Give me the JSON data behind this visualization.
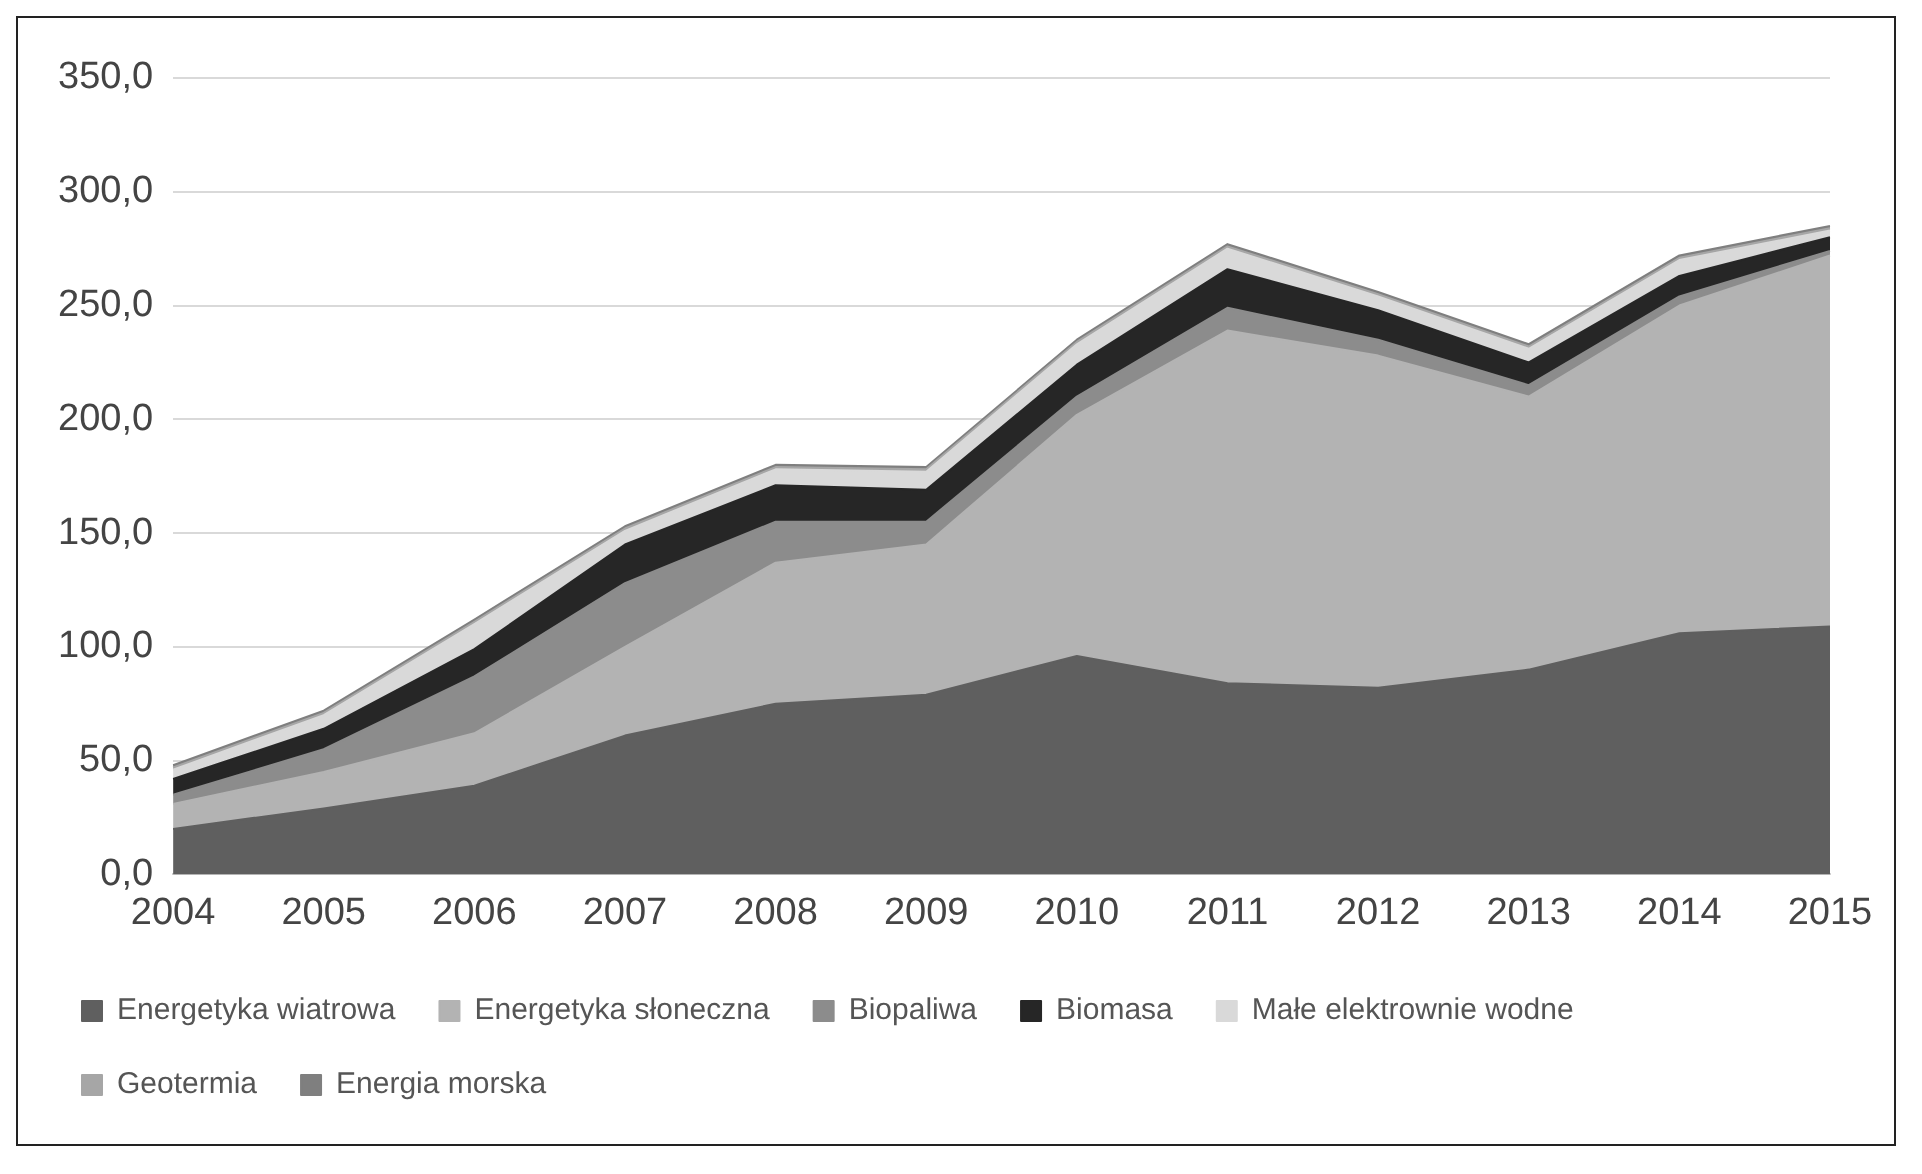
{
  "chart_data": {
    "type": "area",
    "stacked": true,
    "categories": [
      "2004",
      "2005",
      "2006",
      "2007",
      "2008",
      "2009",
      "2010",
      "2011",
      "2012",
      "2013",
      "2014",
      "2015"
    ],
    "series": [
      {
        "name": "Energetyka wiatrowa",
        "color": "#5f5f5f",
        "values": [
          20,
          29,
          39,
          61,
          75,
          79,
          96,
          84,
          82,
          90,
          106,
          109
        ]
      },
      {
        "name": "Energetyka słoneczna",
        "color": "#b3b3b3",
        "values": [
          11,
          16,
          23,
          39,
          62,
          66,
          106,
          155,
          146,
          120,
          144,
          163
        ]
      },
      {
        "name": "Biopaliwa",
        "color": "#8c8c8c",
        "values": [
          4,
          10,
          25,
          28,
          18,
          10,
          8,
          10,
          7,
          5,
          4,
          2
        ]
      },
      {
        "name": "Biomasa",
        "color": "#262626",
        "values": [
          7,
          9,
          12,
          17,
          16,
          14,
          14,
          17,
          13,
          10,
          9,
          6
        ]
      },
      {
        "name": "Małe elektrownie wodne",
        "color": "#d9d9d9",
        "values": [
          4,
          6,
          11,
          6,
          7,
          8,
          9,
          9,
          6,
          6,
          7,
          3
        ]
      },
      {
        "name": "Geotermia",
        "color": "#a6a6a6",
        "values": [
          1,
          1,
          1,
          1,
          1,
          1,
          1,
          1,
          1,
          1,
          1,
          1
        ]
      },
      {
        "name": "Energia morska",
        "color": "#7f7f7f",
        "values": [
          1,
          1,
          1,
          1,
          1,
          1,
          1,
          1,
          1,
          1,
          1,
          1
        ]
      }
    ],
    "ylim": [
      0,
      350
    ],
    "yticks": [
      {
        "value": 0,
        "label": "0,0"
      },
      {
        "value": 50,
        "label": "50,0"
      },
      {
        "value": 100,
        "label": "100,0"
      },
      {
        "value": 150,
        "label": "150,0"
      },
      {
        "value": 200,
        "label": "200,0"
      },
      {
        "value": 250,
        "label": "250,0"
      },
      {
        "value": 300,
        "label": "300,0"
      },
      {
        "value": 350,
        "label": "350,0"
      }
    ],
    "grid": "y",
    "legend": "bottom"
  }
}
